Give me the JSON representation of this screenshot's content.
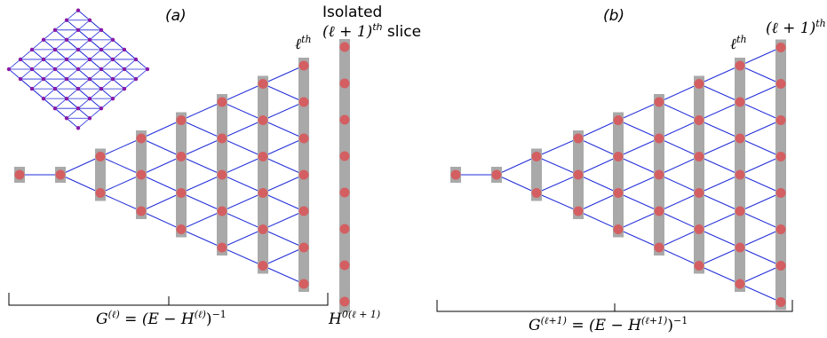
{
  "panels": {
    "a": {
      "tag": "(a)",
      "slice_label": "ℓ",
      "slice_sup": "th",
      "green": "G",
      "green_sup": "(ℓ)",
      "green_rest": "= (E − H",
      "green_rest_sup": "(ℓ)",
      "green_end": ")",
      "green_end_sup": "−1"
    },
    "b": {
      "tag": "(b)",
      "slice_label": "ℓ",
      "slice_sup": "th",
      "next_label": "(ℓ + 1)",
      "next_sup": "th",
      "green": "G",
      "green_sup": "(ℓ+1)",
      "green_rest": "= (E − H",
      "green_rest_sup": "(ℓ+1)",
      "green_end": ")",
      "green_end_sup": "−1"
    }
  },
  "isolated": {
    "line1": "Isolated",
    "line2": "(ℓ + 1)",
    "line2_sup": "th",
    "line2_rest": " slice",
    "h": "H",
    "h_sup": "0(ℓ + 1)"
  },
  "colors": {
    "edge": "#1f2bd8",
    "node": "#d45f62",
    "bar": "#a9a9a9",
    "inset_node": "#8b1aa8"
  }
}
